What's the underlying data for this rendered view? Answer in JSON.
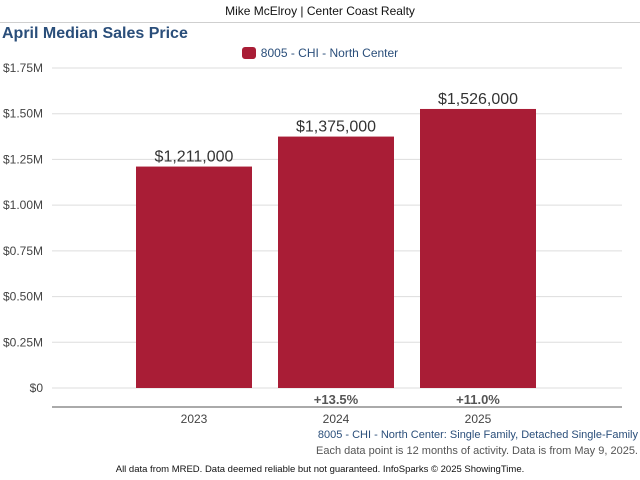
{
  "header": {
    "agent": "Mike McElroy | Center Coast Realty"
  },
  "chart_data": {
    "type": "bar",
    "title": "April Median Sales Price",
    "categories": [
      "2023",
      "2024",
      "2025"
    ],
    "series": [
      {
        "name": "8005 - CHI - North Center",
        "values": [
          1211000,
          1375000,
          1526000
        ],
        "color": "#a91d36"
      }
    ],
    "data_labels": [
      "$1,211,000",
      "$1,375,000",
      "$1,526,000"
    ],
    "change_labels": [
      "",
      "+13.5%",
      "+11.0%"
    ],
    "y_ticks": [
      0,
      250000,
      500000,
      750000,
      1000000,
      1250000,
      1500000,
      1750000
    ],
    "y_tick_labels": [
      "$0",
      "$0.25M",
      "$0.50M",
      "$0.75M",
      "$1.00M",
      "$1.25M",
      "$1.50M",
      "$1.75M"
    ],
    "ylim": [
      0,
      1750000
    ],
    "grid": true,
    "legend_position": "top-center"
  },
  "footnotes": {
    "area": "8005 - CHI - North Center: Single Family, Detached Single-Family",
    "activity": "Each data point is 12 months of activity. Data is from May 9, 2025."
  },
  "disclaimer": "All data from MRED. Data deemed reliable but not guaranteed. InfoSparks © 2025 ShowingTime."
}
